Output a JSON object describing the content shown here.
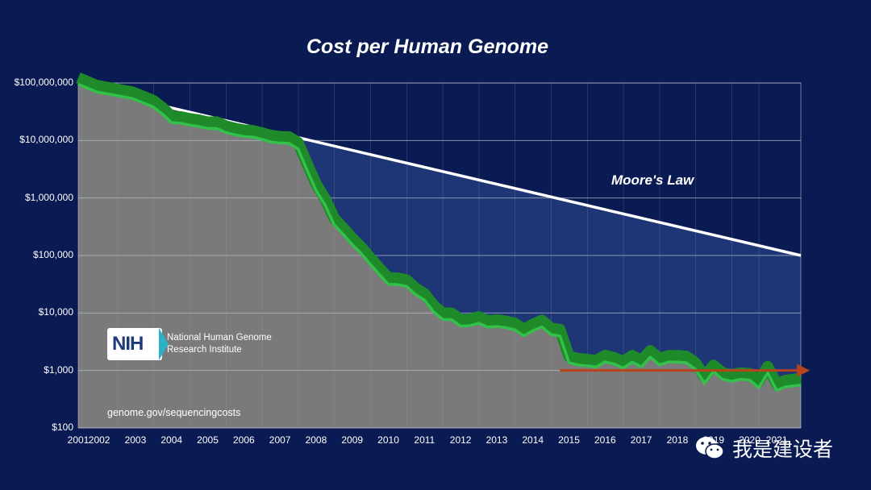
{
  "colors": {
    "background": "#0a1a52",
    "plot_area": "#7a7a7a",
    "moore_fill": "#1f3676",
    "cost_line": "#33c14a",
    "cost_band": "#1f8a2a",
    "moore_line": "#ffffff",
    "arrow": "#b6431c"
  },
  "logo": {
    "abbr": "NIH",
    "line1": "National Human Genome",
    "line2": "Research Institute"
  },
  "source": "genome.gov/sequencingcosts",
  "watermark": {
    "text": "我是建设者",
    "icon": "wechat-icon"
  },
  "chart_data": {
    "type": "line",
    "title": "Cost per Human Genome",
    "xlabel": "",
    "ylabel": "",
    "yscale": "log",
    "ylim": [
      100,
      100000000
    ],
    "xlim": [
      "2001-09",
      "2021-09"
    ],
    "grid": "horizontal",
    "yticks": [
      {
        "value": 100000000,
        "label": "$100,000,000"
      },
      {
        "value": 10000000,
        "label": "$10,000,000"
      },
      {
        "value": 1000000,
        "label": "$1,000,000"
      },
      {
        "value": 100000,
        "label": "$100,000"
      },
      {
        "value": 10000,
        "label": "$10,000"
      },
      {
        "value": 1000,
        "label": "$1,000"
      },
      {
        "value": 100,
        "label": "$100"
      }
    ],
    "xticks": [
      {
        "date": "2001-09",
        "label": "2001"
      },
      {
        "date": "2002-04",
        "label": "2002"
      },
      {
        "date": "2003-04",
        "label": "2003"
      },
      {
        "date": "2004-04",
        "label": "2004"
      },
      {
        "date": "2005-04",
        "label": "2005"
      },
      {
        "date": "2006-04",
        "label": "2006"
      },
      {
        "date": "2007-04",
        "label": "2007"
      },
      {
        "date": "2008-04",
        "label": "2008"
      },
      {
        "date": "2009-04",
        "label": "2009"
      },
      {
        "date": "2010-04",
        "label": "2010"
      },
      {
        "date": "2011-04",
        "label": "2011"
      },
      {
        "date": "2012-04",
        "label": "2012"
      },
      {
        "date": "2013-04",
        "label": "2013"
      },
      {
        "date": "2014-04",
        "label": "2014"
      },
      {
        "date": "2015-04",
        "label": "2015"
      },
      {
        "date": "2016-04",
        "label": "2016"
      },
      {
        "date": "2017-04",
        "label": "2017"
      },
      {
        "date": "2018-04",
        "label": "2018"
      },
      {
        "date": "2019-04",
        "label": "2019"
      },
      {
        "date": "2020-04",
        "label": "2020"
      },
      {
        "date": "2021-01",
        "label": "2021"
      }
    ],
    "series": [
      {
        "name": "",
        "kind": "cost",
        "points": [
          [
            "2001-09",
            95263072
          ],
          [
            "2002-03",
            70175437
          ],
          [
            "2002-09",
            61448422
          ],
          [
            "2003-03",
            53751684
          ],
          [
            "2003-09",
            40157554
          ],
          [
            "2003-10",
            38000000
          ],
          [
            "2004-01",
            28780376
          ],
          [
            "2004-04",
            20442576
          ],
          [
            "2004-07",
            19934346
          ],
          [
            "2004-10",
            18519312
          ],
          [
            "2005-01",
            17534970
          ],
          [
            "2005-04",
            16159699
          ],
          [
            "2005-07",
            16180224
          ],
          [
            "2005-10",
            13801124
          ],
          [
            "2006-01",
            12585659
          ],
          [
            "2006-04",
            11732535
          ],
          [
            "2006-07",
            11455315
          ],
          [
            "2006-10",
            10474556
          ],
          [
            "2007-01",
            9408739
          ],
          [
            "2007-04",
            9047003
          ],
          [
            "2007-07",
            8927342
          ],
          [
            "2007-10",
            7147571
          ],
          [
            "2008-01",
            3063820
          ],
          [
            "2008-04",
            1352982
          ],
          [
            "2008-07",
            752080
          ],
          [
            "2008-10",
            342502
          ],
          [
            "2009-01",
            232735
          ],
          [
            "2009-04",
            154714
          ],
          [
            "2009-07",
            108065
          ],
          [
            "2009-10",
            70333
          ],
          [
            "2010-01",
            46774
          ],
          [
            "2010-04",
            31512
          ],
          [
            "2010-07",
            31125
          ],
          [
            "2010-10",
            29092
          ],
          [
            "2011-01",
            20963
          ],
          [
            "2011-04",
            16712
          ],
          [
            "2011-07",
            10497
          ],
          [
            "2011-10",
            7743
          ],
          [
            "2012-01",
            7666
          ],
          [
            "2012-04",
            5901
          ],
          [
            "2012-07",
            5985
          ],
          [
            "2012-10",
            6618
          ],
          [
            "2013-01",
            5671
          ],
          [
            "2013-04",
            5826
          ],
          [
            "2013-07",
            5550
          ],
          [
            "2013-10",
            5096
          ],
          [
            "2014-01",
            4008
          ],
          [
            "2014-04",
            4920
          ],
          [
            "2014-07",
            5731
          ],
          [
            "2014-10",
            4211
          ],
          [
            "2015-01",
            3970
          ],
          [
            "2015-04",
            1363
          ],
          [
            "2015-07",
            1245
          ],
          [
            "2015-10",
            1200
          ],
          [
            "2016-01",
            1148
          ],
          [
            "2016-04",
            1408
          ],
          [
            "2016-07",
            1290
          ],
          [
            "2016-10",
            1100
          ],
          [
            "2017-01",
            1400
          ],
          [
            "2017-04",
            1150
          ],
          [
            "2017-07",
            1700
          ],
          [
            "2017-10",
            1250
          ],
          [
            "2018-01",
            1400
          ],
          [
            "2018-04",
            1400
          ],
          [
            "2018-07",
            1360
          ],
          [
            "2018-10",
            1050
          ],
          [
            "2019-01",
            600
          ],
          [
            "2019-04",
            950
          ],
          [
            "2019-07",
            700
          ],
          [
            "2019-10",
            650
          ],
          [
            "2020-01",
            700
          ],
          [
            "2020-04",
            680
          ],
          [
            "2020-07",
            500
          ],
          [
            "2020-10",
            900
          ],
          [
            "2021-01",
            450
          ],
          [
            "2021-04",
            520
          ],
          [
            "2021-09",
            560
          ]
        ]
      },
      {
        "name": "Moore's Law",
        "kind": "moore",
        "points": [
          [
            "2003-09",
            45000000
          ],
          [
            "2021-09",
            100000
          ]
        ]
      }
    ],
    "annotations": [
      {
        "type": "arrow",
        "from": [
          "2015-01",
          1000
        ],
        "to": [
          "2021-12",
          1000
        ],
        "color": "#b6431c"
      }
    ]
  }
}
